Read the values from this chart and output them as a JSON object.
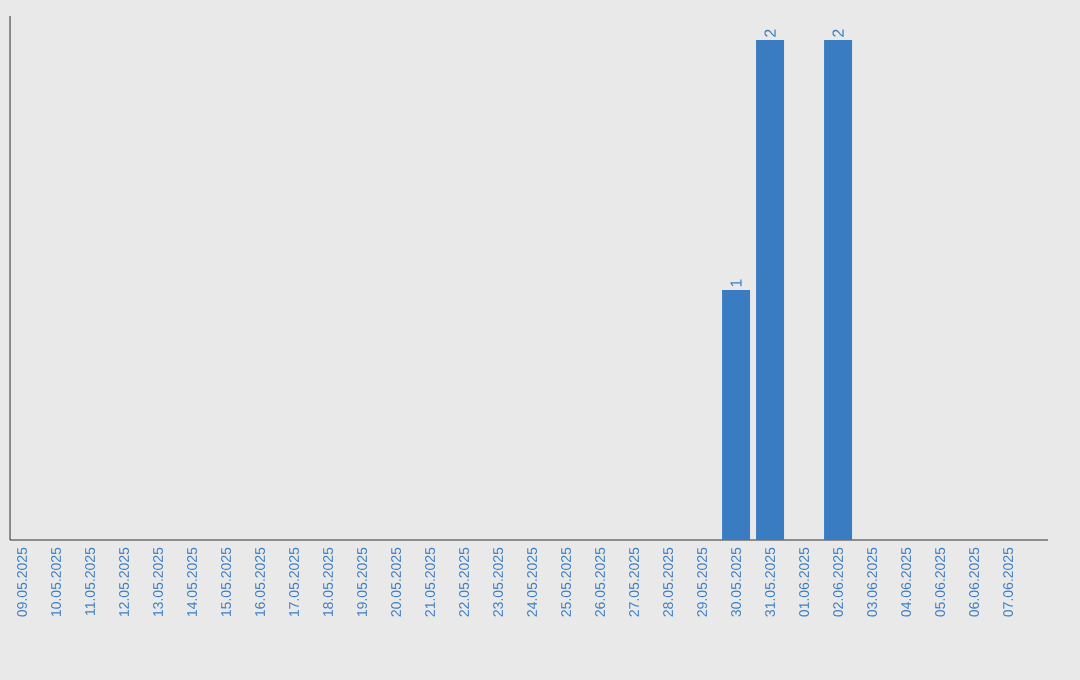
{
  "chart_data": {
    "type": "bar",
    "categories": [
      "09.05.2025",
      "10.05.2025",
      "11.05.2025",
      "12.05.2025",
      "13.05.2025",
      "14.05.2025",
      "15.05.2025",
      "16.05.2025",
      "17.05.2025",
      "18.05.2025",
      "19.05.2025",
      "20.05.2025",
      "21.05.2025",
      "22.05.2025",
      "23.05.2025",
      "24.05.2025",
      "25.05.2025",
      "26.05.2025",
      "27.05.2025",
      "28.05.2025",
      "29.05.2025",
      "30.05.2025",
      "31.05.2025",
      "01.06.2025",
      "02.06.2025",
      "03.06.2025",
      "04.06.2025",
      "05.06.2025",
      "06.06.2025",
      "07.06.2025"
    ],
    "values": [
      null,
      null,
      null,
      null,
      null,
      null,
      null,
      null,
      null,
      null,
      null,
      null,
      null,
      null,
      null,
      null,
      null,
      null,
      null,
      null,
      null,
      1,
      2,
      null,
      2,
      null,
      null,
      null,
      null,
      null
    ],
    "value_labels": [
      null,
      null,
      null,
      null,
      null,
      null,
      null,
      null,
      null,
      null,
      null,
      null,
      null,
      null,
      null,
      null,
      null,
      null,
      null,
      null,
      null,
      "1",
      "2",
      null,
      "2",
      null,
      null,
      null,
      null,
      null
    ],
    "color": "#3a7cc2",
    "grid": false
  }
}
